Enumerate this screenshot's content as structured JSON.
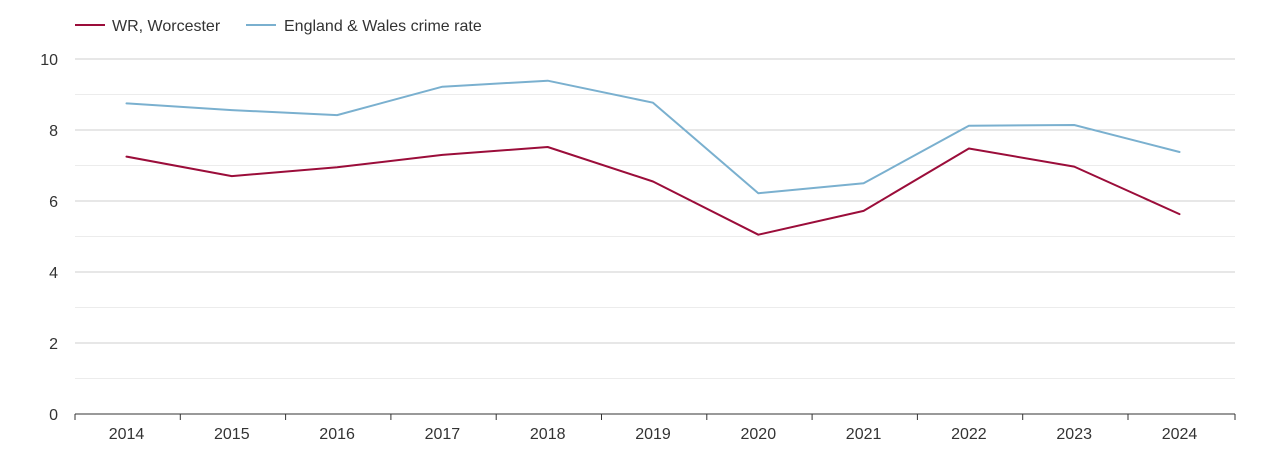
{
  "chart_data": {
    "type": "line",
    "x": [
      2014,
      2015,
      2016,
      2017,
      2018,
      2019,
      2020,
      2021,
      2022,
      2023,
      2024
    ],
    "x_tick_labels": [
      "2014",
      "2015",
      "2016",
      "2017",
      "2018",
      "2019",
      "2020",
      "2021",
      "2022",
      "2023",
      "2024"
    ],
    "y_ticks": [
      0,
      2,
      4,
      6,
      8,
      10
    ],
    "y_tick_labels": [
      "0",
      "2",
      "4",
      "6",
      "8",
      "10"
    ],
    "ylim": [
      0,
      10
    ],
    "grid": true,
    "legend_position": "top-left",
    "series": [
      {
        "name": "WR, Worcester",
        "color": "#9b0d3a",
        "values": [
          7.25,
          6.7,
          6.95,
          7.3,
          7.52,
          6.55,
          5.05,
          5.72,
          7.48,
          6.97,
          5.63
        ]
      },
      {
        "name": "England & Wales crime rate",
        "color": "#7ab0cf",
        "values": [
          8.75,
          8.56,
          8.42,
          9.22,
          9.39,
          8.77,
          6.22,
          6.5,
          8.12,
          8.14,
          7.38
        ]
      }
    ]
  }
}
